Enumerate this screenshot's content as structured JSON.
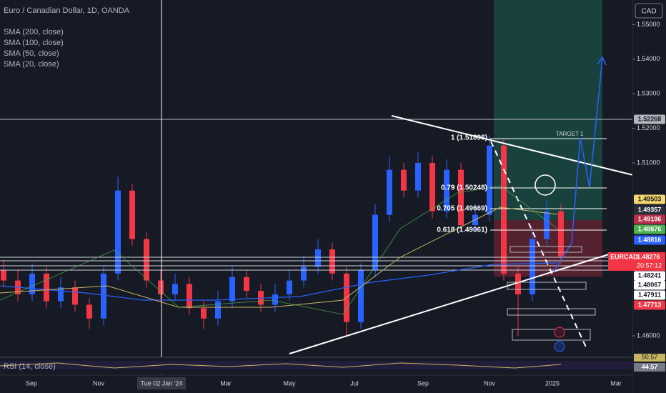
{
  "header": {
    "symbol": "Euro / Canadian Dollar, 1D, OANDA",
    "indicators": [
      "SMA (200, close)",
      "SMA (100, close)",
      "SMA (50, close)",
      "SMA (20, close)"
    ]
  },
  "currency": "CAD",
  "price_axis": {
    "ticks": [
      {
        "value": 1.55,
        "label": "1.55000"
      },
      {
        "value": 1.54,
        "label": "1.54000"
      },
      {
        "value": 1.53,
        "label": "1.53000"
      },
      {
        "value": 1.52,
        "label": "1.52000"
      },
      {
        "value": 1.51,
        "label": "1.51000"
      },
      {
        "value": 1.46,
        "label": "1.46000"
      }
    ]
  },
  "price_labels": [
    {
      "label": "1.52268",
      "color": "#b2b5be"
    },
    {
      "label": "1.49503",
      "color": "#f5d76e"
    },
    {
      "label": "1.49357",
      "color": "#2a2e39"
    },
    {
      "label": "1.49196",
      "color": "#b8314a"
    },
    {
      "label": "1.48876",
      "color": "#4caf50"
    },
    {
      "label": "1.48816",
      "color": "#2962ff"
    }
  ],
  "ticker": {
    "symbol": "EURCAD",
    "price": "1.48276",
    "countdown": "20:57:12",
    "color": "#f23645"
  },
  "lower_labels": [
    {
      "label": "1.48241",
      "color": "#ffffff"
    },
    {
      "label": "1.48067",
      "color": "#ffffff"
    },
    {
      "label": "1.47911",
      "color": "#ffffff"
    },
    {
      "label": "1.47713",
      "color": "#f23645"
    }
  ],
  "time_axis": [
    "Sep",
    "Nov",
    "Tue 02 Jan '24",
    "Mar",
    "May",
    "Jul",
    "Sep",
    "Nov",
    "2025",
    "Mar"
  ],
  "fib_levels": [
    "1 (1.51896)",
    "0.79 (1.50248)",
    "0.705 (1.49669)",
    "0.618 (1.49061)"
  ],
  "target": "TARGET 1",
  "rsi": {
    "title": "RSI (14, close)",
    "labels": [
      "50.57",
      "44.57"
    ]
  },
  "candles": [
    [
      1.479,
      1.482,
      1.474,
      1.476
    ],
    [
      1.476,
      1.479,
      1.47,
      1.472
    ],
    [
      1.472,
      1.481,
      1.47,
      1.478
    ],
    [
      1.478,
      1.48,
      1.468,
      1.47
    ],
    [
      1.47,
      1.477,
      1.468,
      1.474
    ],
    [
      1.474,
      1.476,
      1.467,
      1.469
    ],
    [
      1.469,
      1.471,
      1.462,
      1.465
    ],
    [
      1.465,
      1.48,
      1.463,
      1.478
    ],
    [
      1.478,
      1.506,
      1.476,
      1.502
    ],
    [
      1.502,
      1.504,
      1.486,
      1.488
    ],
    [
      1.488,
      1.49,
      1.474,
      1.476
    ],
    [
      1.476,
      1.479,
      1.47,
      1.472
    ],
    [
      1.472,
      1.478,
      1.47,
      1.475
    ],
    [
      1.475,
      1.477,
      1.466,
      1.468
    ],
    [
      1.468,
      1.47,
      1.462,
      1.465
    ],
    [
      1.465,
      1.473,
      1.463,
      1.47
    ],
    [
      1.47,
      1.48,
      1.468,
      1.477
    ],
    [
      1.477,
      1.479,
      1.471,
      1.473
    ],
    [
      1.473,
      1.475,
      1.467,
      1.469
    ],
    [
      1.469,
      1.475,
      1.467,
      1.472
    ],
    [
      1.472,
      1.479,
      1.47,
      1.476
    ],
    [
      1.476,
      1.483,
      1.474,
      1.48
    ],
    [
      1.48,
      1.488,
      1.478,
      1.485
    ],
    [
      1.485,
      1.487,
      1.476,
      1.478
    ],
    [
      1.478,
      1.48,
      1.46,
      1.464
    ],
    [
      1.464,
      1.481,
      1.462,
      1.479
    ],
    [
      1.479,
      1.498,
      1.477,
      1.495
    ],
    [
      1.495,
      1.512,
      1.493,
      1.508
    ],
    [
      1.508,
      1.51,
      1.5,
      1.502
    ],
    [
      1.502,
      1.513,
      1.5,
      1.51
    ],
    [
      1.51,
      1.512,
      1.494,
      1.496
    ],
    [
      1.496,
      1.511,
      1.494,
      1.508
    ],
    [
      1.508,
      1.51,
      1.49,
      1.492
    ],
    [
      1.492,
      1.498,
      1.49,
      1.495
    ],
    [
      1.495,
      1.518,
      1.493,
      1.515
    ],
    [
      1.515,
      1.517,
      1.476,
      1.478
    ],
    [
      1.478,
      1.48,
      1.46,
      1.472
    ],
    [
      1.472,
      1.491,
      1.47,
      1.488
    ],
    [
      1.488,
      1.499,
      1.486,
      1.496
    ],
    [
      1.496,
      1.498,
      1.481,
      1.483
    ]
  ]
}
